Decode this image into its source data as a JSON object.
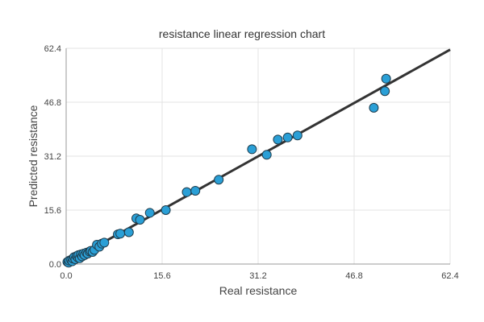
{
  "chart_data": {
    "type": "scatter",
    "title": "resistance linear regression chart",
    "xlabel": "Real resistance",
    "ylabel": "Predicted resistance",
    "xlim": [
      0,
      62.4
    ],
    "ylim": [
      0,
      62.4
    ],
    "xticks": [
      "0.0",
      "15.6",
      "31.2",
      "46.8",
      "62.4"
    ],
    "yticks": [
      "0.0",
      "15.6",
      "31.2",
      "46.8",
      "62.4"
    ],
    "grid": true,
    "colors": {
      "point_fill": "#2a9fd6",
      "point_stroke": "#1f3d4d",
      "line": "#333333",
      "grid": "#e3e3e3",
      "axis": "#999999"
    },
    "regression_line": {
      "x": [
        0,
        62.4
      ],
      "y": [
        0.3,
        62.0
      ]
    },
    "points": [
      [
        0.2,
        0.6
      ],
      [
        0.4,
        0.4
      ],
      [
        0.5,
        1.0
      ],
      [
        0.8,
        1.2
      ],
      [
        1.0,
        0.8
      ],
      [
        1.1,
        1.6
      ],
      [
        1.3,
        2.0
      ],
      [
        1.5,
        1.4
      ],
      [
        1.7,
        2.3
      ],
      [
        1.9,
        1.9
      ],
      [
        2.0,
        2.6
      ],
      [
        2.2,
        1.7
      ],
      [
        2.4,
        2.8
      ],
      [
        2.6,
        2.2
      ],
      [
        2.8,
        3.0
      ],
      [
        3.0,
        2.6
      ],
      [
        3.3,
        3.3
      ],
      [
        3.5,
        3.0
      ],
      [
        3.8,
        3.6
      ],
      [
        4.0,
        3.8
      ],
      [
        4.3,
        3.5
      ],
      [
        4.6,
        4.1
      ],
      [
        5.0,
        5.6
      ],
      [
        5.4,
        5.0
      ],
      [
        5.8,
        5.9
      ],
      [
        6.2,
        6.2
      ],
      [
        8.4,
        8.6
      ],
      [
        8.8,
        8.8
      ],
      [
        10.2,
        9.2
      ],
      [
        11.4,
        13.2
      ],
      [
        12.0,
        12.8
      ],
      [
        13.6,
        14.8
      ],
      [
        16.2,
        15.6
      ],
      [
        19.6,
        20.8
      ],
      [
        21.0,
        21.2
      ],
      [
        24.8,
        24.4
      ],
      [
        30.2,
        33.2
      ],
      [
        32.6,
        31.6
      ],
      [
        34.4,
        36.0
      ],
      [
        36.0,
        36.6
      ],
      [
        37.6,
        37.2
      ],
      [
        50.0,
        45.2
      ],
      [
        51.8,
        50.0
      ],
      [
        52.0,
        53.6
      ]
    ]
  }
}
